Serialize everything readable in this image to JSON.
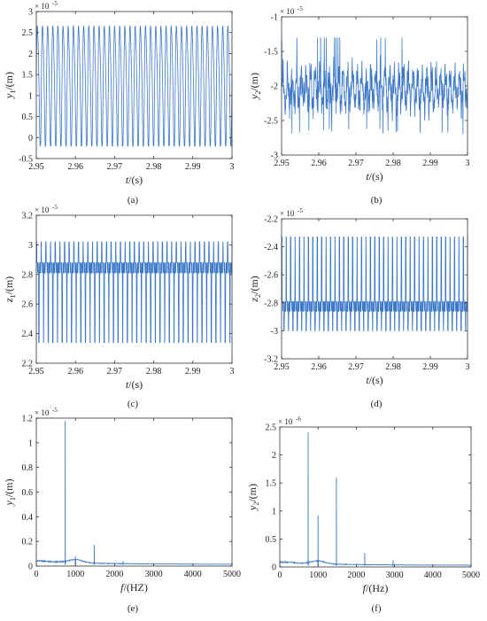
{
  "chart_data": [
    {
      "panel": "(a)",
      "type": "line",
      "ylabel_main": "y",
      "ylabel_sub": "1",
      "ylabel_unit": "/(m)",
      "xlabel_main": "t",
      "xlabel_unit": "/(s)",
      "exponent_base": "× 10",
      "exponent_power": "-5",
      "xlim": [
        2.95,
        3.0
      ],
      "ylim": [
        -0.5,
        3
      ],
      "xticks": [
        "2.95",
        "2.96",
        "2.97",
        "2.98",
        "2.99",
        "3"
      ],
      "yticks": [
        "-0.5",
        "0",
        "0.5",
        "1",
        "1.5",
        "2",
        "2.5",
        "3"
      ],
      "series": [
        {
          "values_summary": {
            "cycles": 38,
            "max": 2.8,
            "min": -0.2,
            "secondary_peak": 1.7
          }
        }
      ]
    },
    {
      "panel": "(b)",
      "type": "line",
      "ylabel_main": "y",
      "ylabel_sub": "2",
      "ylabel_unit": "/(m)",
      "xlabel_main": "t",
      "xlabel_unit": "/(s)",
      "exponent_base": "× 10",
      "exponent_power": "-5",
      "xlim": [
        2.95,
        3.0
      ],
      "ylim": [
        -3,
        -1
      ],
      "xticks": [
        "2.95",
        "2.96",
        "2.97",
        "2.98",
        "2.99",
        "3"
      ],
      "yticks": [
        "-3",
        "-2.5",
        "-2",
        "-1.5",
        "-1"
      ],
      "series": [
        {
          "values_summary": {
            "mean": -2.05,
            "max": -1.35,
            "min": -2.7
          }
        }
      ]
    },
    {
      "panel": "(c)",
      "type": "line",
      "ylabel_main": "z",
      "ylabel_sub": "1",
      "ylabel_unit": "/(m)",
      "xlabel_main": "t",
      "xlabel_unit": "/(s)",
      "exponent_base": "× 10",
      "exponent_power": "-5",
      "xlim": [
        2.95,
        3.0
      ],
      "ylim": [
        2.2,
        3.2
      ],
      "xticks": [
        "2.95",
        "2.96",
        "2.97",
        "2.98",
        "2.99",
        "3"
      ],
      "yticks": [
        "2.2",
        "2.4",
        "2.6",
        "2.8",
        "3",
        "3.2"
      ],
      "series": [
        {
          "values_summary": {
            "cycles": 42,
            "max": 3.02,
            "min": 2.34,
            "band_low": 2.81,
            "band_high": 2.88
          }
        }
      ]
    },
    {
      "panel": "(d)",
      "type": "line",
      "ylabel_main": "z",
      "ylabel_sub": "2",
      "ylabel_unit": "/(m)",
      "xlabel_main": "t",
      "xlabel_unit": "/(s)",
      "exponent_base": "× 10",
      "exponent_power": "-5",
      "xlim": [
        2.95,
        3.0
      ],
      "ylim": [
        -3.2,
        -2.2
      ],
      "xticks": [
        "2.95",
        "2.96",
        "2.97",
        "2.98",
        "2.99",
        "3"
      ],
      "yticks": [
        "-3.2",
        "-3",
        "-2.8",
        "-2.6",
        "-2.4",
        "-2.2"
      ],
      "series": [
        {
          "values_summary": {
            "cycles": 42,
            "max": -2.33,
            "min": -3.0,
            "band_low": -2.86,
            "band_high": -2.79
          }
        }
      ]
    },
    {
      "panel": "(e)",
      "type": "line",
      "ylabel_main": "y",
      "ylabel_sub": "1",
      "ylabel_unit": "/(m)",
      "xlabel_main": "f",
      "xlabel_unit": "/(HZ)",
      "exponent_base": "× 10",
      "exponent_power": "-5",
      "xlim": [
        0,
        5000
      ],
      "ylim": [
        0,
        1.2
      ],
      "xticks": [
        "0",
        "1000",
        "2000",
        "3000",
        "4000",
        "5000"
      ],
      "yticks": [
        "0",
        "0.2",
        "0.4",
        "0.6",
        "0.8",
        "1",
        "1.2"
      ],
      "series": [
        {
          "peaks": [
            {
              "x": 740,
              "y": 1.18
            },
            {
              "x": 1480,
              "y": 0.17
            },
            {
              "x": 1000,
              "y": 0.08
            },
            {
              "x": 2220,
              "y": 0.04
            }
          ]
        }
      ]
    },
    {
      "panel": "(f)",
      "type": "line",
      "ylabel_main": "y",
      "ylabel_sub": "2",
      "ylabel_unit": "/(m)",
      "xlabel_main": "f",
      "xlabel_unit": "/(Hz)",
      "exponent_base": "× 10",
      "exponent_power": "-6",
      "xlim": [
        0,
        5000
      ],
      "ylim": [
        0,
        2.5
      ],
      "xticks": [
        "0",
        "1000",
        "2000",
        "3000",
        "4000",
        "5000"
      ],
      "yticks": [
        "0",
        "0.5",
        "1",
        "1.5",
        "2",
        "2.5"
      ],
      "series": [
        {
          "peaks": [
            {
              "x": 740,
              "y": 2.4
            },
            {
              "x": 1480,
              "y": 1.6
            },
            {
              "x": 1000,
              "y": 0.92
            },
            {
              "x": 2220,
              "y": 0.25
            },
            {
              "x": 2960,
              "y": 0.12
            }
          ]
        }
      ]
    }
  ],
  "style": {
    "line_color": "#3c78c8",
    "axis_color": "#333333",
    "tick_label_color": "#222222"
  }
}
